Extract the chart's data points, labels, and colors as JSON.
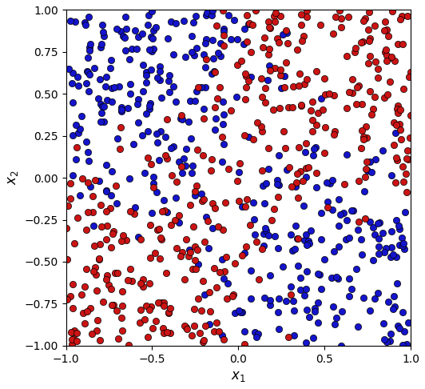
{
  "seed": 0,
  "n_points": 800,
  "xlim": [
    -1.0,
    1.0
  ],
  "ylim": [
    -1.0,
    1.0
  ],
  "xlabel": "$x_1$",
  "ylabel": "$x_2$",
  "color_class0": "#1414CC",
  "color_class1": "#CC1414",
  "marker_size": 35,
  "edgecolor": "black",
  "linewidth": 0.5,
  "xticks": [
    -1.0,
    -0.5,
    0.0,
    0.5,
    1.0
  ],
  "yticks": [
    -1.0,
    -0.75,
    -0.5,
    -0.25,
    0.0,
    0.25,
    0.5,
    0.75,
    1.0
  ],
  "figsize": [
    5.32,
    4.86
  ],
  "dpi": 100,
  "noise_level": 0.15
}
